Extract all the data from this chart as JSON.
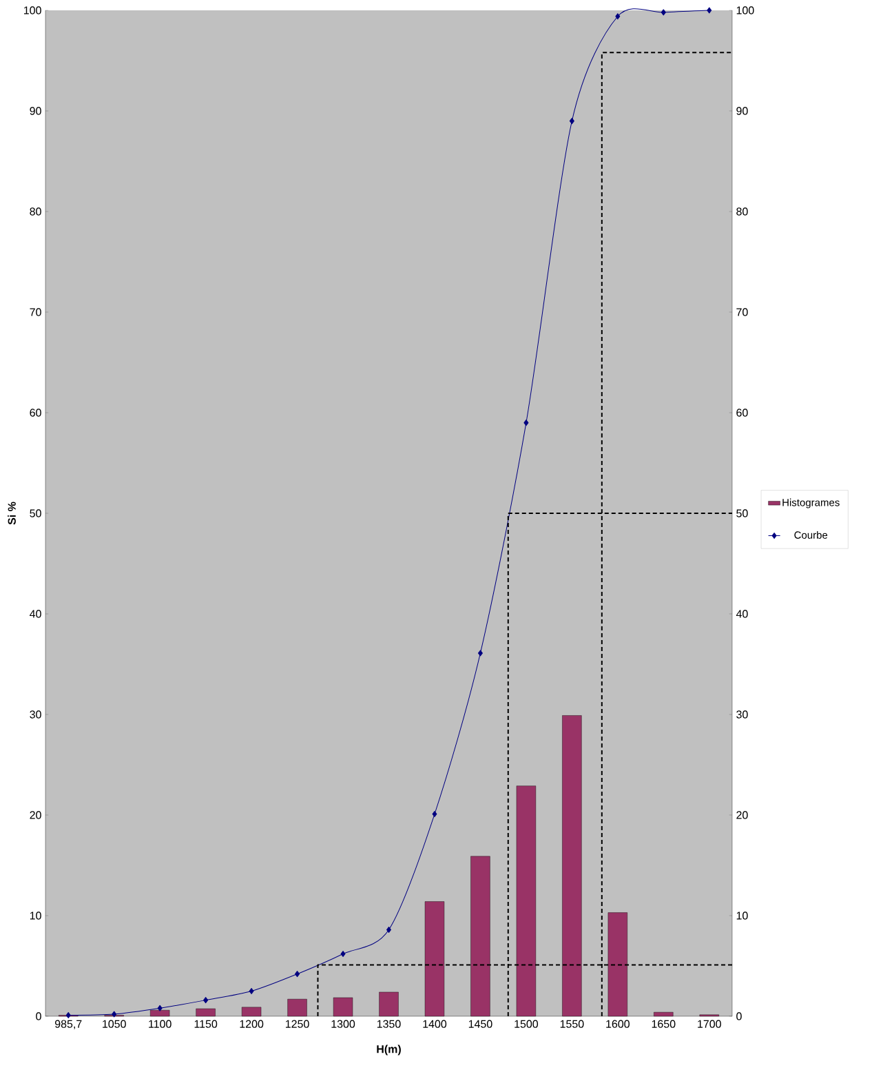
{
  "chart_data": {
    "type": "bar",
    "xlabel": "H(m)",
    "ylabel": "Si %",
    "categories": [
      "985,7",
      "1050",
      "1100",
      "1150",
      "1200",
      "1250",
      "1300",
      "1350",
      "1400",
      "1450",
      "1500",
      "1550",
      "1600",
      "1650",
      "1700"
    ],
    "series": [
      {
        "name": "Histogrames",
        "color": "#993366",
        "values": [
          0.1,
          0.1,
          0.6,
          0.75,
          0.9,
          1.7,
          1.85,
          2.4,
          11.4,
          15.9,
          22.9,
          29.9,
          10.3,
          0.4,
          0.15
        ]
      },
      {
        "name": "Courbe",
        "type": "line",
        "color": "#000080",
        "marker": "diamond",
        "line_style": "solid",
        "values": [
          0.1,
          0.2,
          0.8,
          1.6,
          2.5,
          4.2,
          6.2,
          8.6,
          20.1,
          36.1,
          59.0,
          89.0,
          99.4,
          99.8,
          100
        ]
      }
    ],
    "ref_lines": [
      {
        "axis": "y",
        "value": 5.1,
        "color": "#000000",
        "line_style": "dashed"
      },
      {
        "axis": "y",
        "value": 50,
        "color": "#000000",
        "line_style": "dashed"
      },
      {
        "axis": "y",
        "value": 95.8,
        "color": "#000000",
        "line_style": "dashed"
      }
    ],
    "ylim": [
      0,
      100
    ],
    "yticks": [
      0,
      10,
      20,
      30,
      40,
      50,
      60,
      70,
      80,
      90,
      100
    ],
    "y2lim": [
      0,
      100
    ],
    "y2ticks": [
      0,
      10,
      20,
      30,
      40,
      50,
      60,
      70,
      80,
      90,
      100
    ],
    "legend": "right"
  }
}
